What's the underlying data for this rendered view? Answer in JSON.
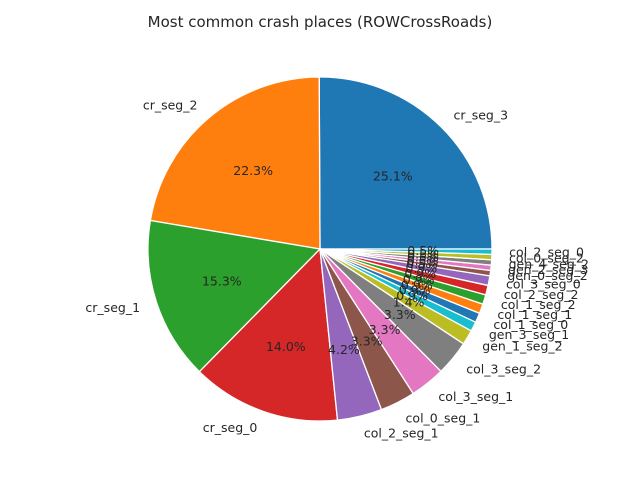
{
  "chart_data": {
    "type": "pie",
    "title": "Most common crash places (ROWCrossRoads)",
    "slices": [
      {
        "label": "cr_seg_3",
        "value": 25.1,
        "pct_label": "25.1%",
        "color": "#1f77b4"
      },
      {
        "label": "cr_seg_2",
        "value": 22.3,
        "pct_label": "22.3%",
        "color": "#ff7f0e"
      },
      {
        "label": "cr_seg_1",
        "value": 15.3,
        "pct_label": "15.3%",
        "color": "#2ca02c"
      },
      {
        "label": "cr_seg_0",
        "value": 14.0,
        "pct_label": "14.0%",
        "color": "#d62728"
      },
      {
        "label": "col_2_seg_1",
        "value": 4.2,
        "pct_label": "4.2%",
        "color": "#9467bd"
      },
      {
        "label": "col_0_seg_1",
        "value": 3.3,
        "pct_label": "3.3%",
        "color": "#8c564b"
      },
      {
        "label": "col_3_seg_1",
        "value": 3.3,
        "pct_label": "3.3%",
        "color": "#e377c2"
      },
      {
        "label": "col_3_seg_2",
        "value": 3.3,
        "pct_label": "3.3%",
        "color": "#7f7f7f"
      },
      {
        "label": "gen_1_seg_2",
        "value": 1.4,
        "pct_label": "1.4%",
        "color": "#bcbd22"
      },
      {
        "label": "gen_3_seg_1",
        "value": 0.9,
        "pct_label": "0.9%",
        "color": "#17becf"
      },
      {
        "label": "col_1_seg_0",
        "value": 0.9,
        "pct_label": "0.9%",
        "color": "#1f77b4"
      },
      {
        "label": "col_1_seg_1",
        "value": 0.9,
        "pct_label": "0.9%",
        "color": "#ff7f0e"
      },
      {
        "label": "col_1_seg_2",
        "value": 0.9,
        "pct_label": "0.9%",
        "color": "#2ca02c"
      },
      {
        "label": "col_2_seg_2",
        "value": 0.9,
        "pct_label": "0.9%",
        "color": "#d62728"
      },
      {
        "label": "col_3_seg_0",
        "value": 0.9,
        "pct_label": "0.9%",
        "color": "#9467bd"
      },
      {
        "label": "gen_0_seg_2",
        "value": 0.5,
        "pct_label": "0.5%",
        "color": "#8c564b"
      },
      {
        "label": "gen_2_seg_3",
        "value": 0.5,
        "pct_label": "0.5%",
        "color": "#e377c2"
      },
      {
        "label": "gen_4_seg_2",
        "value": 0.5,
        "pct_label": "0.5%",
        "color": "#7f7f7f"
      },
      {
        "label": "col_0_seg_2",
        "value": 0.5,
        "pct_label": "0.5%",
        "color": "#bcbd22"
      },
      {
        "label": "col_2_seg_0",
        "value": 0.5,
        "pct_label": "0.5%",
        "color": "#17becf"
      }
    ]
  }
}
